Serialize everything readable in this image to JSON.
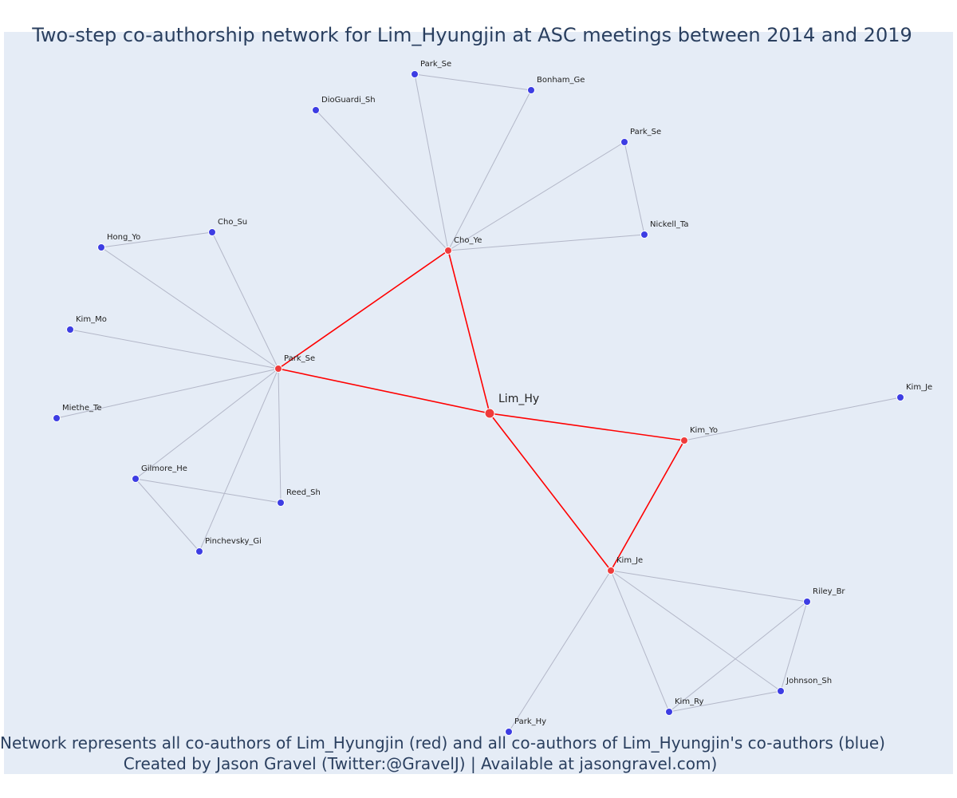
{
  "title": "Two-step co-authorship network for Lim_Hyungjin at ASC meetings between 2014 and 2019",
  "captions": [
    "Network represents all co-authors of Lim_Hyungjin (red) and all co-authors of Lim_Hyungjin's co-authors (blue)",
    "Created by Jason Gravel (Twitter:@GravelJ) | Available at jasongravel.com)"
  ],
  "colors": {
    "background": "#e5ecf6",
    "first_degree_node": "#ef3b3b",
    "second_degree_node": "#3d3de3",
    "first_degree_edge": "#ff0000",
    "second_degree_edge": "#b3b7c8",
    "text": "#2a3f5f"
  },
  "nodes": [
    {
      "id": "lim_hy",
      "label": "Lim_Hy",
      "group": "focal"
    },
    {
      "id": "cho_ye",
      "label": "Cho_Ye",
      "group": "first"
    },
    {
      "id": "park_se_1",
      "label": "Park_Se",
      "group": "first"
    },
    {
      "id": "kim_yo",
      "label": "Kim_Yo",
      "group": "first"
    },
    {
      "id": "kim_je_1",
      "label": "Kim_Je",
      "group": "first"
    },
    {
      "id": "park_se_2",
      "label": "Park_Se",
      "group": "second"
    },
    {
      "id": "bonham_ge",
      "label": "Bonham_Ge",
      "group": "second"
    },
    {
      "id": "dioguardi_sh",
      "label": "DioGuardi_Sh",
      "group": "second"
    },
    {
      "id": "park_se_3",
      "label": "Park_Se",
      "group": "second"
    },
    {
      "id": "nickell_ta",
      "label": "Nickell_Ta",
      "group": "second"
    },
    {
      "id": "cho_su",
      "label": "Cho_Su",
      "group": "second"
    },
    {
      "id": "hong_yo",
      "label": "Hong_Yo",
      "group": "second"
    },
    {
      "id": "kim_mo",
      "label": "Kim_Mo",
      "group": "second"
    },
    {
      "id": "miethe_te",
      "label": "Miethe_Te",
      "group": "second"
    },
    {
      "id": "gilmore_he",
      "label": "Gilmore_He",
      "group": "second"
    },
    {
      "id": "reed_sh",
      "label": "Reed_Sh",
      "group": "second"
    },
    {
      "id": "pinchevsky_gi",
      "label": "Pinchevsky_Gi",
      "group": "second"
    },
    {
      "id": "kim_je_2",
      "label": "Kim_Je",
      "group": "second"
    },
    {
      "id": "riley_br",
      "label": "Riley_Br",
      "group": "second"
    },
    {
      "id": "johnson_sh",
      "label": "Johnson_Sh",
      "group": "second"
    },
    {
      "id": "kim_ry",
      "label": "Kim_Ry",
      "group": "second"
    },
    {
      "id": "park_hy",
      "label": "Park_Hy",
      "group": "second"
    }
  ],
  "edges": [
    {
      "source": "lim_hy",
      "target": "cho_ye",
      "type": "first"
    },
    {
      "source": "lim_hy",
      "target": "park_se_1",
      "type": "first"
    },
    {
      "source": "lim_hy",
      "target": "kim_yo",
      "type": "first"
    },
    {
      "source": "lim_hy",
      "target": "kim_je_1",
      "type": "first"
    },
    {
      "source": "cho_ye",
      "target": "park_se_1",
      "type": "first"
    },
    {
      "source": "kim_yo",
      "target": "kim_je_1",
      "type": "first"
    },
    {
      "source": "cho_ye",
      "target": "park_se_2",
      "type": "second"
    },
    {
      "source": "cho_ye",
      "target": "bonham_ge",
      "type": "second"
    },
    {
      "source": "park_se_2",
      "target": "bonham_ge",
      "type": "second"
    },
    {
      "source": "cho_ye",
      "target": "dioguardi_sh",
      "type": "second"
    },
    {
      "source": "cho_ye",
      "target": "park_se_3",
      "type": "second"
    },
    {
      "source": "cho_ye",
      "target": "nickell_ta",
      "type": "second"
    },
    {
      "source": "park_se_3",
      "target": "nickell_ta",
      "type": "second"
    },
    {
      "source": "park_se_1",
      "target": "cho_su",
      "type": "second"
    },
    {
      "source": "park_se_1",
      "target": "hong_yo",
      "type": "second"
    },
    {
      "source": "hong_yo",
      "target": "cho_su",
      "type": "second"
    },
    {
      "source": "park_se_1",
      "target": "kim_mo",
      "type": "second"
    },
    {
      "source": "park_se_1",
      "target": "miethe_te",
      "type": "second"
    },
    {
      "source": "park_se_1",
      "target": "gilmore_he",
      "type": "second"
    },
    {
      "source": "park_se_1",
      "target": "reed_sh",
      "type": "second"
    },
    {
      "source": "park_se_1",
      "target": "pinchevsky_gi",
      "type": "second"
    },
    {
      "source": "gilmore_he",
      "target": "reed_sh",
      "type": "second"
    },
    {
      "source": "gilmore_he",
      "target": "pinchevsky_gi",
      "type": "second"
    },
    {
      "source": "kim_yo",
      "target": "kim_je_2",
      "type": "second"
    },
    {
      "source": "kim_je_1",
      "target": "riley_br",
      "type": "second"
    },
    {
      "source": "kim_je_1",
      "target": "johnson_sh",
      "type": "second"
    },
    {
      "source": "kim_je_1",
      "target": "kim_ry",
      "type": "second"
    },
    {
      "source": "kim_je_1",
      "target": "park_hy",
      "type": "second"
    },
    {
      "source": "riley_br",
      "target": "johnson_sh",
      "type": "second"
    },
    {
      "source": "riley_br",
      "target": "kim_ry",
      "type": "second"
    },
    {
      "source": "kim_ry",
      "target": "johnson_sh",
      "type": "second"
    }
  ]
}
